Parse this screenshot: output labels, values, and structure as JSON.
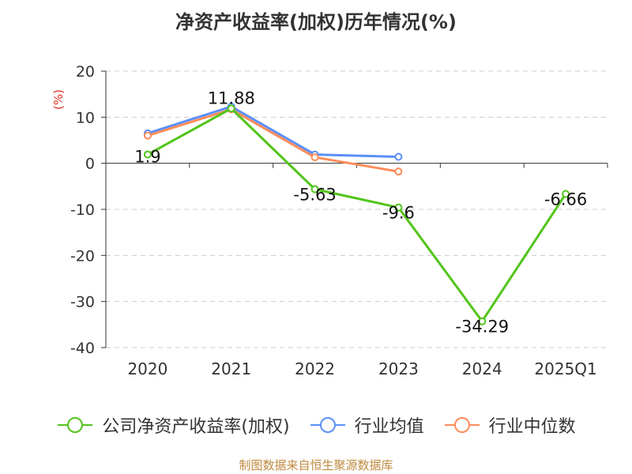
{
  "chart_data": {
    "type": "line",
    "title": "净资产收益率(加权)历年情况(%)",
    "ylabel": "(%)",
    "categories": [
      "2020",
      "2021",
      "2022",
      "2023",
      "2024",
      "2025Q1"
    ],
    "ylim": [
      -40,
      20
    ],
    "yticks": [
      20,
      10,
      0,
      -10,
      -20,
      -30,
      -40
    ],
    "grid": true,
    "legend_position": "bottom",
    "series": [
      {
        "name": "公司净资产收益率(加权)",
        "color": "#52c41a",
        "values": [
          1.9,
          11.88,
          -5.63,
          -9.6,
          -34.29,
          -6.66
        ],
        "labels": [
          "1.9",
          "11.88",
          "-5.63",
          "-9.6",
          "-34.29",
          "-6.66"
        ]
      },
      {
        "name": "行业均值",
        "color": "#5b8ff9",
        "values": [
          6.5,
          12.3,
          1.9,
          1.4,
          null,
          null
        ]
      },
      {
        "name": "行业中位数",
        "color": "#ff8c5a",
        "values": [
          6.0,
          11.7,
          1.3,
          -1.8,
          null,
          null
        ]
      }
    ]
  },
  "footer": {
    "source": "制图数据来自恒生聚源数据库"
  }
}
